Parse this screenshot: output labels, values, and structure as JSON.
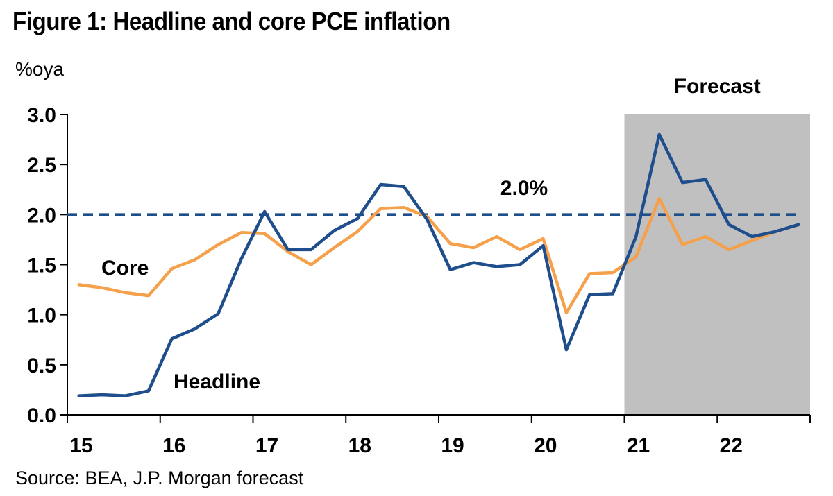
{
  "title": "Figure 1: Headline and core PCE inflation",
  "source": "Source: BEA, J.P. Morgan forecast",
  "chart_data": {
    "type": "line",
    "ylabel": "%oya",
    "ylim": [
      0,
      3.0
    ],
    "yticks": [
      "0.0",
      "0.5",
      "1.0",
      "1.5",
      "2.0",
      "2.5",
      "3.0"
    ],
    "xticks": [
      "15",
      "16",
      "17",
      "18",
      "19",
      "20",
      "21",
      "22"
    ],
    "x": [
      "15Q1",
      "15Q2",
      "15Q3",
      "15Q4",
      "16Q1",
      "16Q2",
      "16Q3",
      "16Q4",
      "17Q1",
      "17Q2",
      "17Q3",
      "17Q4",
      "18Q1",
      "18Q2",
      "18Q3",
      "18Q4",
      "19Q1",
      "19Q2",
      "19Q3",
      "19Q4",
      "20Q1",
      "20Q2",
      "20Q3",
      "20Q4",
      "21Q1",
      "21Q2",
      "21Q3",
      "21Q4",
      "22Q1",
      "22Q2",
      "22Q3",
      "22Q4"
    ],
    "series": [
      {
        "name": "Headline",
        "color": "#1f4e8c",
        "values": [
          0.19,
          0.2,
          0.19,
          0.24,
          0.76,
          0.86,
          1.01,
          1.56,
          2.03,
          1.65,
          1.65,
          1.84,
          1.96,
          2.3,
          2.28,
          1.95,
          1.45,
          1.52,
          1.48,
          1.5,
          1.69,
          0.65,
          1.2,
          1.21,
          1.78,
          2.8,
          2.32,
          2.35,
          1.9,
          1.78,
          1.83,
          1.9
        ]
      },
      {
        "name": "Core",
        "color": "#f5a04a",
        "values": [
          1.3,
          1.27,
          1.22,
          1.19,
          1.46,
          1.55,
          1.7,
          1.82,
          1.81,
          1.63,
          1.5,
          1.67,
          1.83,
          2.06,
          2.07,
          1.98,
          1.71,
          1.67,
          1.78,
          1.65,
          1.76,
          1.02,
          1.41,
          1.42,
          1.58,
          2.16,
          1.7,
          1.78,
          1.65,
          1.74,
          1.83,
          1.9
        ]
      }
    ],
    "reference_line": {
      "value": 2.0,
      "label": "2.0%",
      "color": "#1f4e8c",
      "style": "dashed"
    },
    "shaded_region": {
      "from": "21Q1",
      "to": "22Q4",
      "label": "Forecast",
      "color": "#c0c0c0"
    },
    "grid": false,
    "legend": "inline labels"
  }
}
